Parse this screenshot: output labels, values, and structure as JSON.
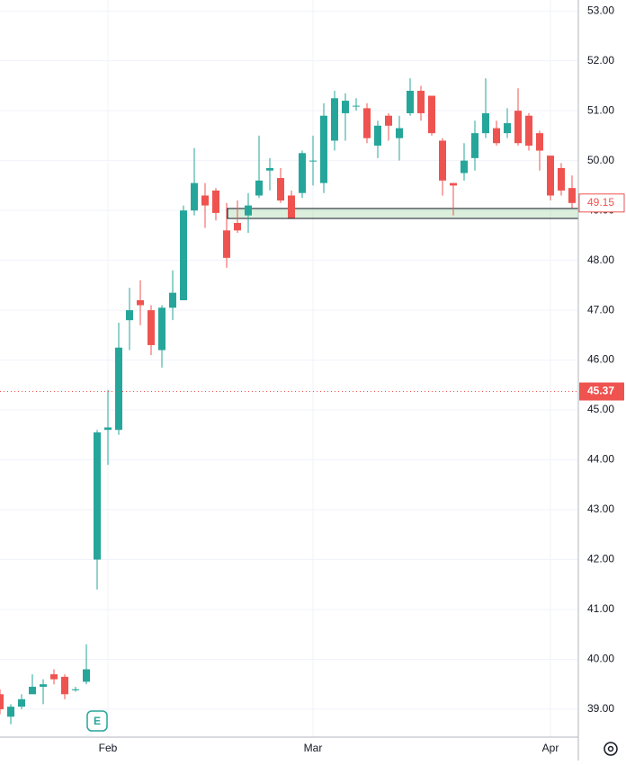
{
  "chart_data": {
    "type": "candlestick",
    "categories": [
      null,
      null,
      null,
      null,
      null,
      null,
      null,
      null,
      null,
      null,
      "Feb",
      null,
      null,
      null,
      null,
      null,
      null,
      null,
      null,
      null,
      null,
      null,
      null,
      null,
      null,
      null,
      null,
      null,
      null,
      "Mar",
      null,
      null,
      null,
      null,
      null,
      null,
      null,
      null,
      null,
      null,
      null,
      null,
      null,
      null,
      null,
      null,
      null,
      null,
      null,
      null,
      null,
      "Apr",
      null,
      null
    ],
    "open": [
      39.3,
      38.85,
      39.05,
      39.3,
      39.45,
      39.7,
      39.65,
      39.38,
      39.55,
      42.0,
      44.6,
      44.6,
      46.8,
      47.2,
      47.0,
      46.2,
      47.05,
      47.2,
      49.0,
      49.3,
      49.4,
      48.6,
      48.75,
      48.9,
      49.3,
      49.8,
      49.65,
      49.3,
      49.35,
      50.0,
      49.55,
      50.4,
      50.95,
      51.1,
      51.05,
      50.3,
      50.9,
      50.45,
      50.95,
      51.4,
      51.3,
      50.4,
      49.55,
      49.75,
      50.05,
      50.55,
      50.65,
      50.55,
      51.0,
      50.9,
      50.55,
      50.1,
      49.85,
      49.45
    ],
    "high": [
      39.4,
      39.1,
      39.3,
      39.7,
      39.6,
      39.8,
      39.7,
      39.45,
      40.3,
      44.6,
      45.4,
      46.75,
      47.45,
      47.6,
      47.1,
      47.1,
      47.8,
      49.1,
      50.25,
      49.55,
      49.45,
      49.15,
      49.2,
      49.35,
      50.5,
      50.05,
      49.85,
      49.4,
      50.2,
      50.5,
      51.15,
      51.4,
      51.35,
      51.25,
      51.15,
      50.8,
      50.95,
      50.9,
      51.65,
      51.5,
      51.3,
      50.45,
      49.55,
      50.35,
      50.8,
      51.65,
      50.8,
      51.05,
      51.45,
      50.95,
      50.6,
      50.1,
      49.95,
      49.7
    ],
    "low": [
      38.9,
      38.7,
      39.0,
      39.3,
      39.1,
      39.5,
      39.2,
      39.35,
      39.5,
      41.4,
      43.9,
      44.5,
      46.2,
      46.7,
      46.1,
      45.85,
      46.8,
      47.2,
      48.9,
      48.65,
      48.8,
      47.85,
      48.55,
      48.55,
      49.25,
      49.4,
      49.15,
      48.85,
      49.25,
      49.5,
      49.35,
      50.2,
      50.4,
      51.0,
      50.35,
      50.05,
      50.4,
      50.0,
      50.9,
      50.8,
      50.5,
      49.3,
      48.9,
      49.6,
      49.8,
      50.45,
      50.3,
      50.45,
      50.3,
      50.2,
      49.8,
      49.2,
      49.3,
      49.05
    ],
    "close": [
      39.0,
      39.05,
      39.2,
      39.45,
      39.5,
      39.6,
      39.3,
      39.4,
      39.8,
      44.55,
      44.65,
      46.25,
      47.0,
      47.1,
      46.3,
      47.05,
      47.35,
      49.0,
      49.55,
      49.1,
      48.95,
      48.05,
      48.6,
      49.1,
      49.6,
      49.85,
      49.2,
      48.85,
      50.15,
      50.0,
      50.9,
      51.25,
      51.2,
      51.1,
      50.45,
      50.7,
      50.7,
      50.65,
      51.4,
      50.95,
      50.55,
      49.6,
      49.5,
      50.0,
      50.55,
      50.95,
      50.35,
      50.75,
      50.35,
      50.3,
      50.2,
      49.3,
      49.4,
      49.15
    ],
    "up_color": "#26a69a",
    "down_color": "#ef5350",
    "ylim": [
      38.44,
      53.22
    ],
    "yticks": [
      {
        "value": 39,
        "label": "39.00"
      },
      {
        "value": 40,
        "label": "40.00"
      },
      {
        "value": 41,
        "label": "41.00"
      },
      {
        "value": 42,
        "label": "42.00"
      },
      {
        "value": 43,
        "label": "43.00"
      },
      {
        "value": 44,
        "label": "44.00"
      },
      {
        "value": 45,
        "label": "45.00"
      },
      {
        "value": 46,
        "label": "46.00"
      },
      {
        "value": 47,
        "label": "47.00"
      },
      {
        "value": 48,
        "label": "48.00"
      },
      {
        "value": 49,
        "label": "49.00"
      },
      {
        "value": 50,
        "label": "50.00"
      },
      {
        "value": 51,
        "label": "51.00"
      },
      {
        "value": 52,
        "label": "52.00"
      },
      {
        "value": 53,
        "label": "53.00"
      }
    ],
    "grid": true,
    "last_price": 49.15,
    "price_line": 45.37,
    "zone": [
      48.84,
      49.04
    ],
    "earnings_marker": {
      "label": "E",
      "category": 9
    }
  }
}
